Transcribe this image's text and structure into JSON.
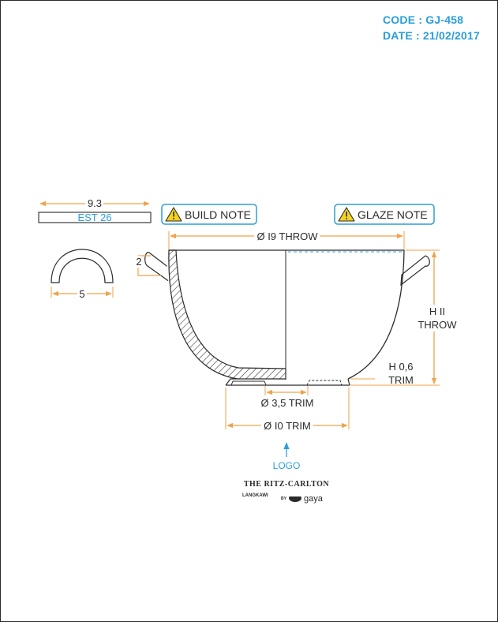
{
  "header": {
    "code": "CODE : GJ-458",
    "date": "DATE : 21/02/2017"
  },
  "handle_bar": {
    "width_label": "9.3",
    "bar_label": "EST 26"
  },
  "handle_profile": {
    "width_label": "5"
  },
  "notes": {
    "build_note": "BUILD NOTE",
    "glaze_note": "GLAZE NOTE"
  },
  "dimensions": {
    "top_diameter": "Ø I9 THROW",
    "height_line1": "H II",
    "height_line2": "THROW",
    "foot_height_line1": "H 0,6",
    "foot_height_line2": "TRIM",
    "inner_foot": "Ø 3,5 TRIM",
    "foot_diameter": "Ø I0 TRIM",
    "handle_height": "2"
  },
  "logo_marker": "LOGO",
  "brand": {
    "name": "THE RITZ-CARLTON",
    "location": "LANGKAWI",
    "by": "BY",
    "partner": "gaya"
  },
  "colors": {
    "accent_blue": "#2b9ed9",
    "dimension_orange": "#f0a24a",
    "line": "#2b2b2b",
    "warning_yellow": "#f5d31f"
  }
}
